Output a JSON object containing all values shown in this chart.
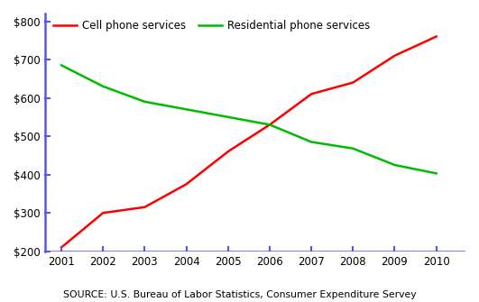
{
  "years": [
    2001,
    2002,
    2003,
    2004,
    2005,
    2006,
    2007,
    2008,
    2009,
    2010
  ],
  "cell_phone": [
    210,
    300,
    315,
    375,
    460,
    530,
    610,
    640,
    710,
    760
  ],
  "residential": [
    685,
    630,
    590,
    570,
    550,
    530,
    485,
    468,
    425,
    403
  ],
  "cell_color": "#ff0000",
  "residential_color": "#00bb00",
  "cell_label": "Cell phone services",
  "residential_label": "Residential phone services",
  "ylabel_ticks": [
    200,
    300,
    400,
    500,
    600,
    700,
    800
  ],
  "ylim": [
    200,
    820
  ],
  "xlim": [
    2000.6,
    2010.7
  ],
  "source_text": "SOURCE: U.S. Bureau of Labor Statistics, Consumer Expenditure Servey",
  "axis_color": "#5555ee",
  "background_color": "#ffffff",
  "line_width": 1.8
}
